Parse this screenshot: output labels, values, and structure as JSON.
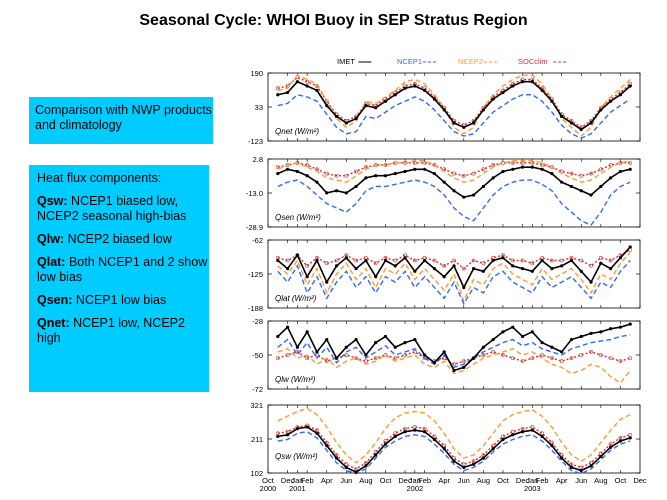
{
  "title": "Seasonal Cycle: WHOI Buoy in SEP Stratus Region",
  "box1": {
    "text": "Comparison with NWP products and climatology"
  },
  "box2": {
    "heading": "Heat flux components:",
    "items": [
      {
        "label": "Qsw:",
        "text": " NCEP1 biased low, NCEP2 seasonal high-bias"
      },
      {
        "label": "Qlw:",
        "text": " NCEP2 biased low"
      },
      {
        "label": "Qlat:",
        "text": " Both NCEP1 and 2 show low bias"
      },
      {
        "label": "Qsen:",
        "text": " NCEP1 low bias"
      },
      {
        "label": "Qnet:",
        "text": " NCEP1 low, NCEP2 high"
      }
    ]
  },
  "colors": {
    "box": "#00ccff",
    "imet": "#000000",
    "ncep1": "#3366ff",
    "ncep2": "#ff9933",
    "socclim": "#cc3333"
  },
  "chart_data": {
    "type": "line",
    "x_axis": {
      "tick_labels": [
        "Oct",
        "Dec",
        "Jan",
        "Feb",
        "Apr",
        "Jun",
        "Aug",
        "Oct",
        "Dec",
        "Jan",
        "Feb",
        "Apr",
        "Jun",
        "Aug",
        "Oct",
        "Dec",
        "Jan",
        "Feb",
        "Apr",
        "Jun",
        "Aug",
        "Oct",
        "Dec"
      ],
      "tick_months": [
        0,
        2,
        3,
        4,
        6,
        8,
        10,
        12,
        14,
        15,
        16,
        18,
        20,
        22,
        24,
        26,
        27,
        28,
        30,
        32,
        34,
        36,
        38
      ],
      "year_labels": [
        {
          "label": "2000",
          "month": 0
        },
        {
          "label": "2001",
          "month": 3
        },
        {
          "label": "2002",
          "month": 15
        },
        {
          "label": "2003",
          "month": 27
        }
      ],
      "range": [
        0,
        38
      ]
    },
    "legend": [
      "IMET",
      "NCEP1",
      "NCEP2",
      "SOCclim"
    ],
    "panels": [
      {
        "name": "qnet",
        "label": "Qnet (W/m²)",
        "ylim": [
          -123,
          190
        ],
        "ticks": [
          "190",
          "33",
          "-123"
        ],
        "series": {
          "IMET": [
            90,
            100,
            150,
            130,
            110,
            40,
            -10,
            -40,
            -20,
            40,
            30,
            60,
            90,
            120,
            130,
            110,
            70,
            20,
            -40,
            -60,
            -40,
            20,
            70,
            100,
            130,
            150,
            150,
            110,
            60,
            -10,
            -40,
            -70,
            -40,
            20,
            60,
            90,
            130
          ],
          "NCEP1": [
            40,
            50,
            90,
            80,
            60,
            0,
            -60,
            -90,
            -80,
            -10,
            -20,
            10,
            40,
            60,
            80,
            60,
            20,
            -30,
            -80,
            -100,
            -90,
            -40,
            10,
            40,
            70,
            90,
            90,
            60,
            10,
            -50,
            -90,
            -110,
            -90,
            -40,
            10,
            40,
            70
          ],
          "NCEP2": [
            110,
            120,
            180,
            160,
            140,
            60,
            -20,
            -60,
            -30,
            60,
            50,
            80,
            110,
            150,
            160,
            140,
            90,
            30,
            -60,
            -90,
            -60,
            30,
            90,
            130,
            160,
            180,
            180,
            140,
            70,
            -20,
            -60,
            -100,
            -60,
            30,
            80,
            120,
            160
          ],
          "SOCclim": [
            120,
            130,
            170,
            150,
            130,
            60,
            0,
            -30,
            -10,
            50,
            40,
            70,
            100,
            130,
            140,
            120,
            80,
            30,
            -30,
            -50,
            -30,
            30,
            80,
            110,
            140,
            160,
            160,
            120,
            70,
            0,
            -30,
            -60,
            -30,
            30,
            70,
            100,
            140
          ]
        }
      },
      {
        "name": "qsen",
        "label": "Qsen (W/m²)",
        "ylim": [
          -28.9,
          2.8
        ],
        "ticks": [
          "2.8",
          "-13.0",
          "-28.9"
        ],
        "series": {
          "IMET": [
            -4,
            -2,
            -3,
            -5,
            -8,
            -13,
            -12,
            -13,
            -10,
            -6,
            -5,
            -5,
            -4,
            -3,
            -2,
            -2,
            -4,
            -8,
            -12,
            -15,
            -14,
            -10,
            -6,
            -3,
            -2,
            -1,
            -1,
            -2,
            -4,
            -8,
            -10,
            -12,
            -14,
            -10,
            -6,
            -3,
            -2
          ],
          "NCEP1": [
            -10,
            -8,
            -7,
            -10,
            -14,
            -18,
            -20,
            -22,
            -18,
            -12,
            -10,
            -10,
            -9,
            -8,
            -7,
            -8,
            -10,
            -14,
            -20,
            -24,
            -26,
            -20,
            -14,
            -10,
            -8,
            -7,
            -7,
            -9,
            -12,
            -18,
            -22,
            -26,
            -28,
            -22,
            -14,
            -10,
            -8
          ],
          "NCEP2": [
            -2,
            0,
            1,
            -1,
            -3,
            -6,
            -7,
            -8,
            -5,
            -2,
            0,
            0,
            1,
            1,
            2,
            2,
            0,
            -3,
            -6,
            -8,
            -7,
            -4,
            -1,
            1,
            2,
            2,
            2,
            1,
            -1,
            -4,
            -6,
            -8,
            -7,
            -4,
            -1,
            1,
            2
          ],
          "SOCclim": [
            -1,
            0,
            1,
            0,
            -2,
            -4,
            -5,
            -5,
            -3,
            -1,
            0,
            0,
            1,
            1,
            1,
            1,
            0,
            -2,
            -4,
            -5,
            -4,
            -2,
            0,
            1,
            1,
            1,
            1,
            0,
            -1,
            -3,
            -4,
            -5,
            -4,
            -2,
            0,
            1,
            1
          ]
        }
      },
      {
        "name": "qlat",
        "label": "Qlat (W/m²)",
        "ylim": [
          -188,
          -62
        ],
        "ticks": [
          "-62",
          "-125",
          "-188"
        ],
        "series": {
          "IMET": [
            -100,
            -115,
            -90,
            -130,
            -100,
            -140,
            -110,
            -95,
            -115,
            -100,
            -130,
            -100,
            -110,
            -95,
            -120,
            -100,
            -115,
            -130,
            -110,
            -150,
            -115,
            -120,
            -100,
            -95,
            -110,
            -115,
            -120,
            -100,
            -115,
            -110,
            -100,
            -120,
            -140,
            -105,
            -115,
            -95,
            -75
          ],
          "NCEP1": [
            -120,
            -140,
            -110,
            -160,
            -130,
            -170,
            -140,
            -120,
            -150,
            -130,
            -160,
            -130,
            -140,
            -120,
            -150,
            -130,
            -150,
            -170,
            -140,
            -180,
            -150,
            -160,
            -130,
            -120,
            -140,
            -150,
            -160,
            -130,
            -150,
            -140,
            -130,
            -150,
            -170,
            -140,
            -150,
            -120,
            -100
          ],
          "NCEP2": [
            -110,
            -125,
            -100,
            -145,
            -115,
            -160,
            -125,
            -105,
            -135,
            -115,
            -150,
            -115,
            -125,
            -105,
            -135,
            -115,
            -135,
            -155,
            -125,
            -175,
            -135,
            -145,
            -115,
            -105,
            -125,
            -135,
            -145,
            -115,
            -135,
            -125,
            -115,
            -135,
            -160,
            -125,
            -135,
            -105,
            -85
          ],
          "SOCclim": [
            -95,
            -100,
            -90,
            -110,
            -95,
            -105,
            -100,
            -90,
            -100,
            -95,
            -105,
            -95,
            -100,
            -90,
            -100,
            -95,
            -100,
            -110,
            -100,
            -115,
            -100,
            -105,
            -95,
            -90,
            -100,
            -100,
            -105,
            -95,
            -100,
            -100,
            -95,
            -100,
            -110,
            -95,
            -100,
            -90,
            -80
          ]
        }
      },
      {
        "name": "qlw",
        "label": "Qlw (W/m²)",
        "ylim": [
          -72,
          -28
        ],
        "ticks": [
          "-28",
          "-50",
          "-72"
        ],
        "series": {
          "IMET": [
            -38,
            -32,
            -45,
            -35,
            -48,
            -40,
            -52,
            -45,
            -40,
            -50,
            -42,
            -38,
            -45,
            -42,
            -40,
            -50,
            -55,
            -48,
            -60,
            -58,
            -52,
            -45,
            -40,
            -35,
            -32,
            -38,
            -35,
            -42,
            -45,
            -48,
            -40,
            -38,
            -36,
            -35,
            -33,
            -32,
            -30
          ],
          "NCEP1": [
            -45,
            -40,
            -50,
            -42,
            -52,
            -45,
            -55,
            -48,
            -45,
            -52,
            -48,
            -44,
            -50,
            -48,
            -46,
            -52,
            -56,
            -50,
            -58,
            -56,
            -52,
            -48,
            -45,
            -42,
            -40,
            -44,
            -42,
            -46,
            -48,
            -50,
            -46,
            -44,
            -42,
            -41,
            -40,
            -38,
            -37
          ],
          "NCEP2": [
            -48,
            -46,
            -52,
            -50,
            -56,
            -52,
            -58,
            -54,
            -52,
            -56,
            -54,
            -50,
            -54,
            -52,
            -50,
            -56,
            -58,
            -54,
            -62,
            -60,
            -56,
            -52,
            -50,
            -48,
            -46,
            -50,
            -48,
            -52,
            -56,
            -58,
            -62,
            -60,
            -56,
            -58,
            -64,
            -68,
            -60
          ],
          "SOCclim": [
            -52,
            -50,
            -48,
            -52,
            -50,
            -54,
            -52,
            -50,
            -52,
            -54,
            -52,
            -50,
            -52,
            -50,
            -48,
            -52,
            -54,
            -52,
            -56,
            -54,
            -52,
            -50,
            -48,
            -50,
            -52,
            -54,
            -52,
            -50,
            -52,
            -54,
            -52,
            -50,
            -48,
            -50,
            -52,
            -54,
            -52
          ]
        }
      },
      {
        "name": "qsw",
        "label": "Qsw (W/m²)",
        "ylim": [
          102,
          321
        ],
        "ticks": [
          "321",
          "211",
          "102"
        ],
        "series": {
          "IMET": [
            220,
            225,
            245,
            250,
            230,
            190,
            150,
            120,
            105,
            125,
            160,
            195,
            220,
            235,
            240,
            235,
            210,
            180,
            140,
            120,
            130,
            150,
            180,
            210,
            225,
            235,
            240,
            220,
            190,
            150,
            120,
            110,
            125,
            155,
            185,
            205,
            215
          ],
          "NCEP1": [
            205,
            210,
            230,
            235,
            215,
            175,
            135,
            110,
            100,
            115,
            150,
            185,
            205,
            220,
            225,
            220,
            195,
            165,
            130,
            110,
            120,
            140,
            170,
            195,
            210,
            220,
            225,
            205,
            175,
            140,
            110,
            100,
            115,
            145,
            175,
            195,
            205
          ],
          "NCEP2": [
            270,
            285,
            300,
            310,
            290,
            250,
            200,
            160,
            135,
            160,
            200,
            245,
            280,
            295,
            300,
            295,
            270,
            230,
            180,
            150,
            160,
            190,
            230,
            270,
            290,
            300,
            305,
            285,
            250,
            200,
            160,
            140,
            160,
            200,
            240,
            275,
            290
          ],
          "SOCclim": [
            230,
            235,
            250,
            255,
            240,
            200,
            160,
            130,
            115,
            135,
            170,
            205,
            230,
            245,
            250,
            245,
            220,
            190,
            150,
            130,
            140,
            160,
            190,
            220,
            235,
            245,
            250,
            230,
            200,
            160,
            130,
            120,
            135,
            165,
            195,
            215,
            225
          ]
        }
      }
    ]
  }
}
